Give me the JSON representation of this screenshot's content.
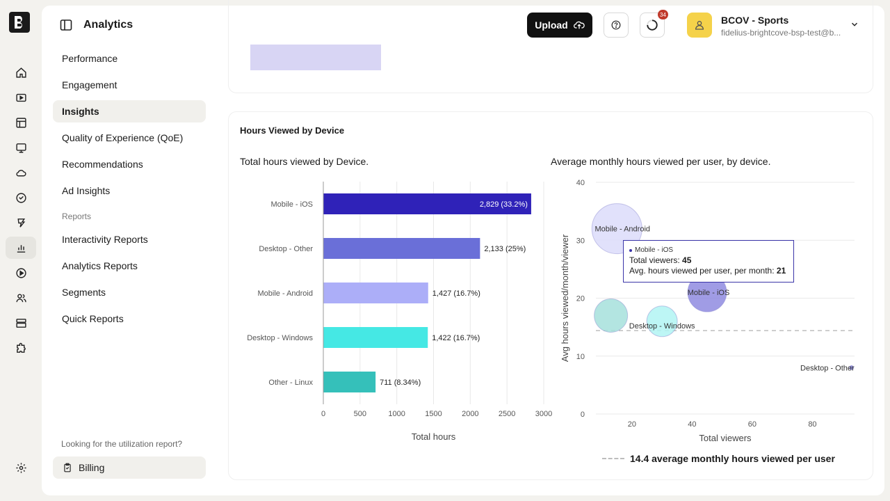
{
  "header": {
    "title": "Analytics",
    "upload_label": "Upload",
    "notifications_count": "34"
  },
  "account": {
    "name": "BCOV - Sports",
    "email": "fidelius-brightcove-bsp-test@b..."
  },
  "nav": {
    "items": [
      "Performance",
      "Engagement",
      "Insights",
      "Quality of Experience (QoE)",
      "Recommendations",
      "Ad Insights"
    ],
    "active": "Insights",
    "reports_section": "Reports",
    "report_items": [
      "Interactivity Reports",
      "Analytics Reports",
      "Segments",
      "Quick Reports"
    ],
    "utilization_text": "Looking for the utilization report?",
    "billing_label": "Billing"
  },
  "rail_icons": [
    "home-icon",
    "video-icon",
    "layout-icon",
    "monitor-icon",
    "cloud-icon",
    "shield-check-icon",
    "brand-icon",
    "analytics-icon",
    "play-circle-icon",
    "users-icon",
    "archive-icon",
    "puzzle-icon",
    "settings-icon"
  ],
  "card": {
    "title": "Hours Viewed by Device",
    "left_subtitle": "Total hours viewed by Device.",
    "right_subtitle": "Average monthly hours viewed per user, by device."
  },
  "tooltip": {
    "series": "Mobile - iOS",
    "viewers_label": "Total viewers: ",
    "viewers_value": "45",
    "avg_label": "Avg. hours viewed per user, per month: ",
    "avg_value": "21"
  },
  "legend": {
    "text": "14.4 average monthly hours viewed per user"
  },
  "chart_data": [
    {
      "type": "bar",
      "orientation": "horizontal",
      "categories": [
        "Mobile - iOS",
        "Desktop - Other",
        "Mobile - Android",
        "Desktop - Windows",
        "Other - Linux"
      ],
      "values": [
        2829,
        2133,
        1427,
        1422,
        711
      ],
      "data_labels": [
        "2,829 (33.2%)",
        "2,133 (25%)",
        "1,427 (16.7%)",
        "1,422 (16.7%)",
        "711 (8.34%)"
      ],
      "colors": [
        "#2f22b8",
        "#6a6fd8",
        "#acaef8",
        "#45e8e4",
        "#35c0ba"
      ],
      "xlabel": "Total hours",
      "xlim": [
        0,
        3000
      ],
      "xticks": [
        0,
        500,
        1000,
        1500,
        2000,
        2500,
        3000
      ],
      "grid": true
    },
    {
      "type": "scatter",
      "subtype": "bubble",
      "points": [
        {
          "name": "Mobile - Android",
          "x": 15,
          "y": 32,
          "r": 36,
          "color": "#dcdcfa"
        },
        {
          "name": "Mobile - iOS",
          "x": 45,
          "y": 21,
          "r": 28,
          "color": "#8f8be0"
        },
        {
          "name": "",
          "x": 13,
          "y": 17,
          "r": 24,
          "color": "#a6e0dc"
        },
        {
          "name": "Desktop - Windows",
          "x": 30,
          "y": 16,
          "r": 22,
          "color": "#b2f5f3"
        },
        {
          "name": "Desktop - Other",
          "x": 93,
          "y": 8,
          "r": 3,
          "color": "#7c7ad0"
        }
      ],
      "xlabel": "Total viewers",
      "ylabel": "Avg hours viewed/month/viewer",
      "xlim": [
        8,
        94
      ],
      "ylim": [
        0,
        40
      ],
      "xticks": [
        20,
        40,
        60,
        80
      ],
      "yticks": [
        0,
        10,
        20,
        30,
        40
      ],
      "reference_line_y": 14.4,
      "grid": true
    }
  ]
}
